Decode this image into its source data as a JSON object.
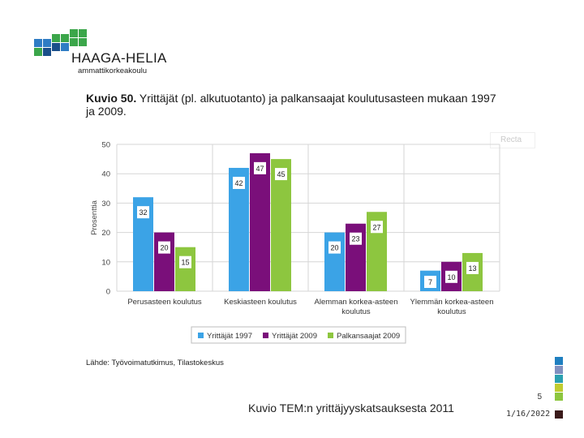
{
  "header": {
    "brand": "HAAGA-HELIA",
    "brand_sub": "ammattikorkeakoulu",
    "logo_colors": [
      "#2e7cc4",
      "#3ba64a",
      "#1b4f8a"
    ]
  },
  "figure": {
    "title_bold": "Kuvio 50.",
    "title_rest": " Yrittäjät (pl. alkutuotanto) ja palkansaajat koulutusasteen mukaan 1997 ja 2009.",
    "source": "Lähde: Työvoimatutkimus, Tilastokeskus"
  },
  "chart_data": {
    "type": "bar",
    "ylabel": "Prosenttia",
    "ylim": [
      0,
      50
    ],
    "yticks": [
      0,
      10,
      20,
      30,
      40,
      50
    ],
    "grid": true,
    "legend_position": "bottom",
    "categories": [
      [
        "Perusasteen koulutus"
      ],
      [
        "Keskiasteen koulutus"
      ],
      [
        "Alemman korkea-asteen",
        "koulutus"
      ],
      [
        "Ylemmän korkea-asteen",
        "koulutus"
      ]
    ],
    "series": [
      {
        "name": "Yrittäjät 1997",
        "color": "#3ba3e6",
        "values": [
          32,
          42,
          20,
          7
        ]
      },
      {
        "name": "Yrittäjät 2009",
        "color": "#7a0f7a",
        "values": [
          20,
          47,
          23,
          10
        ]
      },
      {
        "name": "Palkansaajat 2009",
        "color": "#8dc63f",
        "values": [
          15,
          45,
          27,
          13
        ]
      }
    ]
  },
  "footer": {
    "caption": "Kuvio TEM:n yrittäjyyskatsauksesta 2011",
    "slide_number": "5",
    "date": "1/16/2022",
    "ghost_label": "Recta",
    "strip_colors": [
      "#1f7fc0",
      "#8090c0",
      "#2aa0b0",
      "#c0cc30",
      "#8dc63f",
      "#ffffff",
      "#3a1a1a"
    ]
  }
}
